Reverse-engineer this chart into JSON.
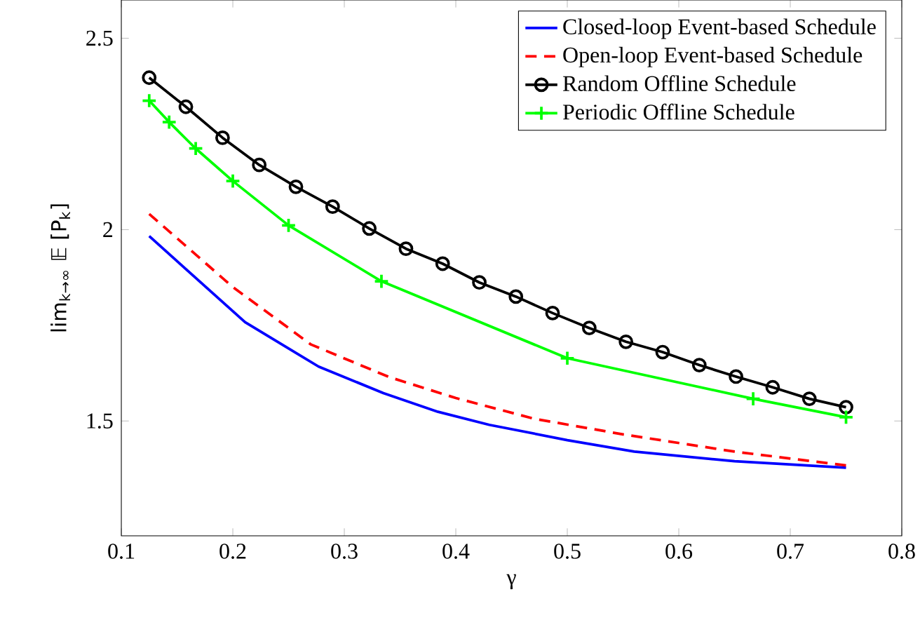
{
  "chart_data": {
    "type": "line",
    "xlabel": "γ",
    "ylabel": "lim$_{k→∞}$ 𝔼 [P$_{k}$]",
    "xlim": [
      0.1,
      0.8
    ],
    "ylim": [
      1.2,
      2.6
    ],
    "xticks": [
      0.1,
      0.2,
      0.3,
      0.4,
      0.5,
      0.6,
      0.7,
      0.8
    ],
    "yticks": [
      1.5,
      2,
      2.5
    ],
    "legend": "top right",
    "grid": false,
    "series": [
      {
        "name": "Closed-loop Event-based Schedule",
        "color": "#0000ff",
        "line_style": "solid",
        "marker": "none",
        "x": [
          0.125,
          0.211,
          0.277,
          0.335,
          0.384,
          0.43,
          0.5,
          0.56,
          0.65,
          0.75
        ],
        "values": [
          1.983,
          1.758,
          1.642,
          1.573,
          1.524,
          1.49,
          1.45,
          1.42,
          1.395,
          1.378
        ]
      },
      {
        "name": "Open-loop Event-based Schedule",
        "color": "#ff0000",
        "line_style": "dashed",
        "marker": "none",
        "x": [
          0.125,
          0.2,
          0.27,
          0.34,
          0.4,
          0.47,
          0.55,
          0.65,
          0.75
        ],
        "values": [
          2.041,
          1.85,
          1.7,
          1.615,
          1.56,
          1.506,
          1.465,
          1.42,
          1.384
        ]
      },
      {
        "name": "Random Offline Schedule",
        "color": "#000000",
        "line_style": "solid",
        "marker": "circle",
        "x": [
          0.125,
          0.1579,
          0.1908,
          0.2237,
          0.2566,
          0.2895,
          0.3224,
          0.3553,
          0.3882,
          0.4211,
          0.4539,
          0.4868,
          0.5197,
          0.5526,
          0.5855,
          0.6184,
          0.6513,
          0.6842,
          0.7171,
          0.75
        ],
        "values": [
          2.397,
          2.321,
          2.24,
          2.169,
          2.112,
          2.06,
          2.003,
          1.95,
          1.911,
          1.862,
          1.825,
          1.782,
          1.743,
          1.707,
          1.68,
          1.646,
          1.616,
          1.588,
          1.558,
          1.536
        ]
      },
      {
        "name": "Periodic Offline Schedule",
        "color": "#00ff00",
        "line_style": "solid",
        "marker": "cross",
        "x": [
          0.125,
          0.1429,
          0.1667,
          0.2,
          0.25,
          0.3333,
          0.5,
          0.6667,
          0.75
        ],
        "values": [
          2.337,
          2.281,
          2.212,
          2.127,
          2.011,
          1.865,
          1.664,
          1.558,
          1.51
        ]
      }
    ]
  }
}
